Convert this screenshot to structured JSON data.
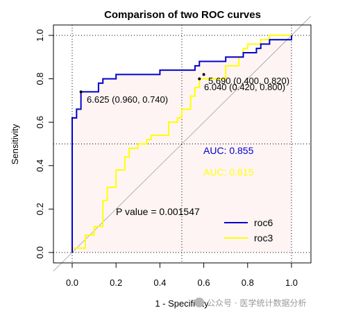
{
  "chart_data": {
    "type": "line",
    "title": "Comparison of two ROC curves",
    "xlabel": "1 - Specificity",
    "ylabel": "Sensitivity",
    "xlim": [
      0,
      1
    ],
    "ylim": [
      0,
      1
    ],
    "x_ticks": [
      "0.0",
      "0.2",
      "0.4",
      "0.6",
      "0.8",
      "1.0"
    ],
    "y_ticks": [
      "0.0",
      "0.2",
      "0.4",
      "0.6",
      "0.8",
      "1.0"
    ],
    "grid": "dotted at 0, 0.5, 1",
    "legend_position": "bottom-right",
    "series": [
      {
        "name": "roc6",
        "color": "#0000cc",
        "auc_label": "AUC: 0.855",
        "threshold_label": "6.625 (0.960, 0.740)",
        "threshold_point": [
          0.04,
          0.74
        ],
        "points": [
          [
            0.0,
            0.0
          ],
          [
            0.0,
            0.62
          ],
          [
            0.02,
            0.62
          ],
          [
            0.02,
            0.66
          ],
          [
            0.04,
            0.66
          ],
          [
            0.04,
            0.74
          ],
          [
            0.12,
            0.74
          ],
          [
            0.12,
            0.78
          ],
          [
            0.14,
            0.78
          ],
          [
            0.14,
            0.8
          ],
          [
            0.2,
            0.8
          ],
          [
            0.2,
            0.82
          ],
          [
            0.4,
            0.82
          ],
          [
            0.4,
            0.84
          ],
          [
            0.56,
            0.84
          ],
          [
            0.56,
            0.86
          ],
          [
            0.58,
            0.86
          ],
          [
            0.58,
            0.88
          ],
          [
            0.7,
            0.88
          ],
          [
            0.7,
            0.9
          ],
          [
            0.78,
            0.9
          ],
          [
            0.78,
            0.92
          ],
          [
            0.84,
            0.92
          ],
          [
            0.84,
            0.94
          ],
          [
            0.86,
            0.94
          ],
          [
            0.86,
            0.96
          ],
          [
            0.9,
            0.96
          ],
          [
            0.9,
            0.98
          ],
          [
            1.0,
            0.98
          ],
          [
            1.0,
            1.0
          ]
        ]
      },
      {
        "name": "roc3",
        "color": "#ffff00",
        "auc_label": "AUC: 0.615",
        "threshold_label": "6.040 (0.420, 0.800)",
        "threshold_point": [
          0.58,
          0.8
        ],
        "points": [
          [
            0.0,
            0.0
          ],
          [
            0.0,
            0.02
          ],
          [
            0.06,
            0.02
          ],
          [
            0.06,
            0.08
          ],
          [
            0.1,
            0.08
          ],
          [
            0.1,
            0.12
          ],
          [
            0.14,
            0.12
          ],
          [
            0.14,
            0.24
          ],
          [
            0.16,
            0.24
          ],
          [
            0.16,
            0.3
          ],
          [
            0.2,
            0.3
          ],
          [
            0.2,
            0.38
          ],
          [
            0.24,
            0.38
          ],
          [
            0.24,
            0.44
          ],
          [
            0.26,
            0.44
          ],
          [
            0.26,
            0.48
          ],
          [
            0.3,
            0.48
          ],
          [
            0.3,
            0.5
          ],
          [
            0.34,
            0.5
          ],
          [
            0.34,
            0.52
          ],
          [
            0.36,
            0.52
          ],
          [
            0.36,
            0.54
          ],
          [
            0.44,
            0.54
          ],
          [
            0.44,
            0.6
          ],
          [
            0.48,
            0.6
          ],
          [
            0.48,
            0.62
          ],
          [
            0.5,
            0.62
          ],
          [
            0.5,
            0.66
          ],
          [
            0.54,
            0.66
          ],
          [
            0.54,
            0.72
          ],
          [
            0.56,
            0.72
          ],
          [
            0.56,
            0.76
          ],
          [
            0.58,
            0.76
          ],
          [
            0.58,
            0.8
          ],
          [
            0.7,
            0.8
          ],
          [
            0.7,
            0.86
          ],
          [
            0.76,
            0.86
          ],
          [
            0.76,
            0.9
          ],
          [
            0.78,
            0.9
          ],
          [
            0.78,
            0.94
          ],
          [
            0.8,
            0.94
          ],
          [
            0.8,
            0.96
          ],
          [
            0.86,
            0.96
          ],
          [
            0.86,
            0.98
          ],
          [
            0.9,
            0.98
          ],
          [
            0.9,
            1.0
          ],
          [
            1.0,
            1.0
          ]
        ]
      }
    ],
    "extra_point": {
      "label": "5.690 (0.400, 0.820)",
      "point": [
        0.6,
        0.82
      ]
    },
    "p_value_label": "P value = 0.001547",
    "fill_color": "#fff4f4"
  },
  "watermark": {
    "text": "公众号 · 医学统计数据分析"
  }
}
